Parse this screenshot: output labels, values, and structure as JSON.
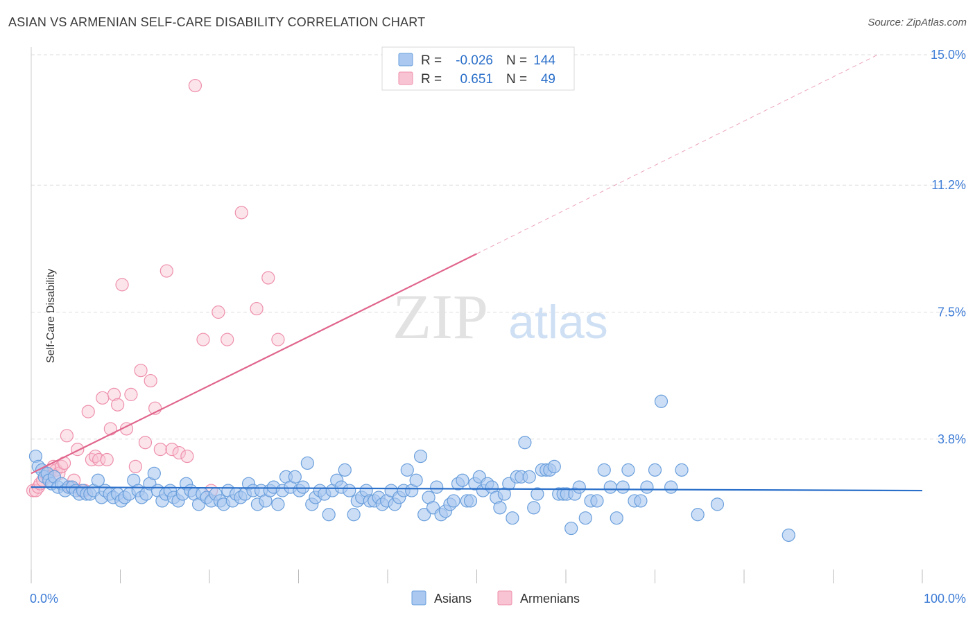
{
  "title": "ASIAN VS ARMENIAN SELF-CARE DISABILITY CORRELATION CHART",
  "source": "Source: ZipAtlas.com",
  "watermark": {
    "zip": "ZIP",
    "atlas": "atlas"
  },
  "legend_box": {
    "rows": [
      {
        "r_label": "R =",
        "r_value": "-0.026",
        "n_label": "N =",
        "n_value": "144",
        "color": "#7aaee8"
      },
      {
        "r_label": "R =",
        "r_value": "0.651",
        "n_label": "N =",
        "n_value": "49",
        "color": "#f4a3bc"
      }
    ]
  },
  "bottom_legend": [
    {
      "label": "Asians",
      "color": "#7aaee8"
    },
    {
      "label": "Armenians",
      "color": "#f4a3bc"
    }
  ],
  "colors": {
    "asian_fill": "#aac8f0",
    "asian_stroke": "#6a9fdc",
    "asian_line": "#2a6fc9",
    "armenian_fill": "#f8c3d2",
    "armenian_stroke": "#ee8fab",
    "armenian_line": "#e0658c",
    "axis_text": "#3d7cd6",
    "grid": "#dddddd"
  },
  "chart_data": {
    "type": "scatter",
    "title": "ASIAN VS ARMENIAN SELF-CARE DISABILITY CORRELATION CHART",
    "xlabel": "",
    "ylabel": "Self-Care Disability",
    "xlim": [
      0,
      100
    ],
    "ylim": [
      0,
      15
    ],
    "x_tick_labels": [
      "0.0%",
      "100.0%"
    ],
    "y_ticks": [
      3.8,
      7.5,
      11.2,
      15.0
    ],
    "y_tick_labels": [
      "3.8%",
      "7.5%",
      "11.2%",
      "15.0%"
    ],
    "grid": true,
    "series": [
      {
        "name": "Asians",
        "R": -0.026,
        "N": 144,
        "trend": {
          "x": [
            0,
            100
          ],
          "y": [
            2.4,
            2.3
          ],
          "style": "solid"
        },
        "points": [
          [
            0.5,
            3.3
          ],
          [
            0.8,
            3.0
          ],
          [
            1.2,
            2.9
          ],
          [
            1.5,
            2.7
          ],
          [
            1.8,
            2.8
          ],
          [
            2.0,
            2.6
          ],
          [
            2.3,
            2.5
          ],
          [
            2.6,
            2.7
          ],
          [
            3.0,
            2.4
          ],
          [
            3.4,
            2.5
          ],
          [
            3.8,
            2.3
          ],
          [
            4.2,
            2.4
          ],
          [
            4.6,
            2.4
          ],
          [
            5.0,
            2.3
          ],
          [
            5.4,
            2.2
          ],
          [
            5.8,
            2.3
          ],
          [
            6.2,
            2.2
          ],
          [
            6.6,
            2.2
          ],
          [
            7.0,
            2.3
          ],
          [
            7.5,
            2.6
          ],
          [
            7.9,
            2.1
          ],
          [
            8.3,
            2.3
          ],
          [
            8.8,
            2.2
          ],
          [
            9.2,
            2.1
          ],
          [
            9.7,
            2.2
          ],
          [
            10.1,
            2.0
          ],
          [
            10.5,
            2.1
          ],
          [
            11.0,
            2.2
          ],
          [
            11.5,
            2.6
          ],
          [
            12.0,
            2.3
          ],
          [
            12.4,
            2.1
          ],
          [
            12.9,
            2.2
          ],
          [
            13.3,
            2.5
          ],
          [
            13.8,
            2.8
          ],
          [
            14.2,
            2.3
          ],
          [
            14.7,
            2.0
          ],
          [
            15.1,
            2.2
          ],
          [
            15.6,
            2.3
          ],
          [
            16.0,
            2.1
          ],
          [
            16.5,
            2.0
          ],
          [
            17.0,
            2.2
          ],
          [
            17.4,
            2.5
          ],
          [
            17.9,
            2.3
          ],
          [
            18.3,
            2.2
          ],
          [
            18.8,
            1.9
          ],
          [
            19.2,
            2.2
          ],
          [
            19.7,
            2.1
          ],
          [
            20.2,
            2.0
          ],
          [
            20.7,
            2.2
          ],
          [
            21.2,
            2.0
          ],
          [
            21.6,
            1.9
          ],
          [
            22.1,
            2.3
          ],
          [
            22.6,
            2.0
          ],
          [
            23.0,
            2.2
          ],
          [
            23.5,
            2.1
          ],
          [
            24.0,
            2.2
          ],
          [
            24.4,
            2.5
          ],
          [
            24.9,
            2.3
          ],
          [
            25.4,
            1.9
          ],
          [
            25.8,
            2.3
          ],
          [
            26.3,
            2.0
          ],
          [
            26.8,
            2.3
          ],
          [
            27.2,
            2.4
          ],
          [
            27.7,
            1.9
          ],
          [
            28.2,
            2.3
          ],
          [
            28.6,
            2.7
          ],
          [
            29.1,
            2.4
          ],
          [
            29.6,
            2.7
          ],
          [
            30.1,
            2.3
          ],
          [
            30.5,
            2.4
          ],
          [
            31.0,
            3.1
          ],
          [
            31.5,
            1.9
          ],
          [
            31.9,
            2.1
          ],
          [
            32.4,
            2.3
          ],
          [
            32.9,
            2.2
          ],
          [
            33.4,
            1.6
          ],
          [
            33.8,
            2.3
          ],
          [
            34.3,
            2.6
          ],
          [
            34.8,
            2.4
          ],
          [
            35.2,
            2.9
          ],
          [
            35.7,
            2.3
          ],
          [
            36.2,
            1.6
          ],
          [
            36.6,
            2.0
          ],
          [
            37.1,
            2.1
          ],
          [
            37.6,
            2.3
          ],
          [
            38.0,
            2.0
          ],
          [
            38.5,
            2.0
          ],
          [
            39.0,
            2.1
          ],
          [
            39.4,
            1.9
          ],
          [
            39.9,
            2.0
          ],
          [
            40.4,
            2.3
          ],
          [
            40.8,
            1.9
          ],
          [
            41.3,
            2.1
          ],
          [
            41.8,
            2.3
          ],
          [
            42.2,
            2.9
          ],
          [
            42.7,
            2.3
          ],
          [
            43.2,
            2.6
          ],
          [
            43.7,
            3.3
          ],
          [
            44.1,
            1.6
          ],
          [
            44.6,
            2.1
          ],
          [
            45.1,
            1.8
          ],
          [
            45.5,
            2.4
          ],
          [
            46.0,
            1.6
          ],
          [
            46.5,
            1.7
          ],
          [
            47.0,
            1.9
          ],
          [
            47.4,
            2.0
          ],
          [
            47.9,
            2.5
          ],
          [
            48.4,
            2.6
          ],
          [
            48.9,
            2.0
          ],
          [
            49.3,
            2.0
          ],
          [
            49.8,
            2.5
          ],
          [
            50.3,
            2.7
          ],
          [
            50.7,
            2.3
          ],
          [
            51.2,
            2.5
          ],
          [
            51.7,
            2.4
          ],
          [
            52.2,
            2.1
          ],
          [
            52.6,
            1.8
          ],
          [
            53.1,
            2.2
          ],
          [
            53.6,
            2.5
          ],
          [
            54.0,
            1.5
          ],
          [
            54.5,
            2.7
          ],
          [
            55.0,
            2.7
          ],
          [
            55.4,
            3.7
          ],
          [
            55.9,
            2.7
          ],
          [
            56.4,
            1.8
          ],
          [
            56.8,
            2.2
          ],
          [
            57.3,
            2.9
          ],
          [
            57.8,
            2.9
          ],
          [
            58.2,
            2.9
          ],
          [
            58.7,
            3.0
          ],
          [
            59.2,
            2.2
          ],
          [
            59.7,
            2.2
          ],
          [
            60.1,
            2.2
          ],
          [
            60.6,
            1.2
          ],
          [
            61.0,
            2.2
          ],
          [
            61.5,
            2.4
          ],
          [
            62.2,
            1.5
          ],
          [
            62.8,
            2.0
          ],
          [
            63.5,
            2.0
          ],
          [
            64.3,
            2.9
          ],
          [
            65.0,
            2.4
          ],
          [
            65.7,
            1.5
          ],
          [
            66.4,
            2.4
          ],
          [
            67.0,
            2.9
          ],
          [
            67.7,
            2.0
          ],
          [
            68.4,
            2.0
          ],
          [
            69.1,
            2.4
          ],
          [
            70.0,
            2.9
          ],
          [
            70.7,
            4.9
          ],
          [
            71.8,
            2.4
          ],
          [
            73.0,
            2.9
          ],
          [
            74.8,
            1.6
          ],
          [
            77.0,
            1.9
          ],
          [
            85.0,
            1.0
          ]
        ]
      },
      {
        "name": "Armenians",
        "R": 0.651,
        "N": 49,
        "trend": {
          "x": [
            0,
            50
          ],
          "y": [
            2.8,
            9.2
          ],
          "dashed_extension": {
            "x": [
              50,
              95
            ],
            "y": [
              9.2,
              15.0
            ]
          },
          "style": "solid"
        },
        "points": [
          [
            0.2,
            2.3
          ],
          [
            0.5,
            2.3
          ],
          [
            0.8,
            2.4
          ],
          [
            1.0,
            2.5
          ],
          [
            1.3,
            2.6
          ],
          [
            1.6,
            2.8
          ],
          [
            1.9,
            2.7
          ],
          [
            2.2,
            2.9
          ],
          [
            2.5,
            3.0
          ],
          [
            2.8,
            2.9
          ],
          [
            3.1,
            2.8
          ],
          [
            3.4,
            3.0
          ],
          [
            3.7,
            3.1
          ],
          [
            4.0,
            3.9
          ],
          [
            4.4,
            2.4
          ],
          [
            4.8,
            2.6
          ],
          [
            5.2,
            3.5
          ],
          [
            5.6,
            2.3
          ],
          [
            6.0,
            2.3
          ],
          [
            6.4,
            4.6
          ],
          [
            6.8,
            3.2
          ],
          [
            7.2,
            3.3
          ],
          [
            7.6,
            3.2
          ],
          [
            8.0,
            5.0
          ],
          [
            8.5,
            3.2
          ],
          [
            8.9,
            4.1
          ],
          [
            9.3,
            5.1
          ],
          [
            9.7,
            4.8
          ],
          [
            10.2,
            8.3
          ],
          [
            10.7,
            4.1
          ],
          [
            11.2,
            5.1
          ],
          [
            11.7,
            3.0
          ],
          [
            12.3,
            5.8
          ],
          [
            12.8,
            3.7
          ],
          [
            13.4,
            5.5
          ],
          [
            13.9,
            4.7
          ],
          [
            14.5,
            3.5
          ],
          [
            15.2,
            8.7
          ],
          [
            15.8,
            3.5
          ],
          [
            16.6,
            3.4
          ],
          [
            17.5,
            3.3
          ],
          [
            18.4,
            14.1
          ],
          [
            19.3,
            6.7
          ],
          [
            20.2,
            2.3
          ],
          [
            21.0,
            7.5
          ],
          [
            22.0,
            6.7
          ],
          [
            23.6,
            10.4
          ],
          [
            25.3,
            7.6
          ],
          [
            26.6,
            8.5
          ],
          [
            27.7,
            6.7
          ]
        ]
      }
    ]
  }
}
